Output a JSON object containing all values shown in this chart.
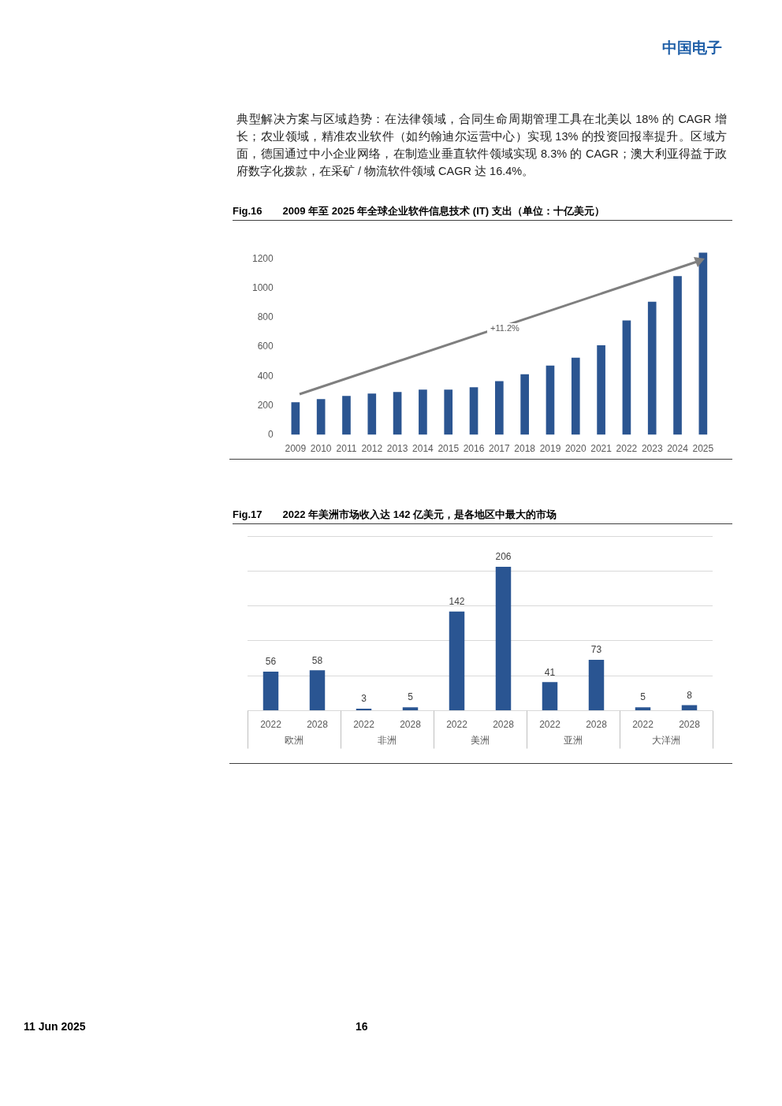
{
  "chart_data": [
    {
      "type": "bar",
      "title": "Fig.16　　2009 年至 2025 年全球企业软件信息技术 (IT) 支出（单位：十亿美元）",
      "categories": [
        "2009",
        "2010",
        "2011",
        "2012",
        "2013",
        "2014",
        "2015",
        "2016",
        "2017",
        "2018",
        "2019",
        "2020",
        "2021",
        "2022",
        "2023",
        "2024",
        "2025"
      ],
      "values": [
        223,
        244,
        266,
        281,
        292,
        308,
        308,
        324,
        366,
        414,
        473,
        526,
        611,
        781,
        908,
        1083,
        1243
      ],
      "color": "#2b5591",
      "ylim": [
        0,
        1250
      ],
      "yticks": [
        0,
        200,
        400,
        600,
        800,
        1000,
        1200
      ],
      "grid": false,
      "legend": false,
      "annotations": [
        "中国电子",
        "典型解决方案与区域趋势：在法律领域，合同生命周期管理工具在北美以 18% 的 CAGR 增长；农业领域，精准农业软件（如约翰迪尔运营中心）实现 13% 的投资回报率提升。区域方面，德国通过中小企业网络，在制造业垂直软件领域实现 8.3% 的 CAGR；澳大利亚得益于政府数字化拨款，在采矿 / 物流软件领域 CAGR 达 16.4%。",
        "+11.2%"
      ]
    },
    {
      "type": "bar",
      "title": "Fig.17　　2022 年美洲市场收入达 142 亿美元，是各地区中最大的市场",
      "categories": [
        "2022",
        "2028",
        "2022",
        "2028",
        "2022",
        "2028",
        "2022",
        "2028",
        "2022",
        "2028"
      ],
      "values": [
        56,
        58,
        3,
        5,
        142,
        206,
        41,
        73,
        5,
        8
      ],
      "color": "#2a5592",
      "ylim": [
        0,
        250
      ],
      "yticks": [
        {
          "value": 0,
          "label": null
        },
        {
          "value": 50,
          "label": null
        },
        {
          "value": 100,
          "label": null
        },
        {
          "value": 150,
          "label": null
        },
        {
          "value": 200,
          "label": null
        },
        {
          "value": 250,
          "label": null
        }
      ],
      "grid": "y",
      "legend": false,
      "tick_labels": "x",
      "data_labels": true,
      "annotations": [
        "欧洲",
        "非洲",
        "美洲",
        "亚洲",
        "大洋洲",
        "11 Jun 2025",
        "16"
      ]
    }
  ]
}
